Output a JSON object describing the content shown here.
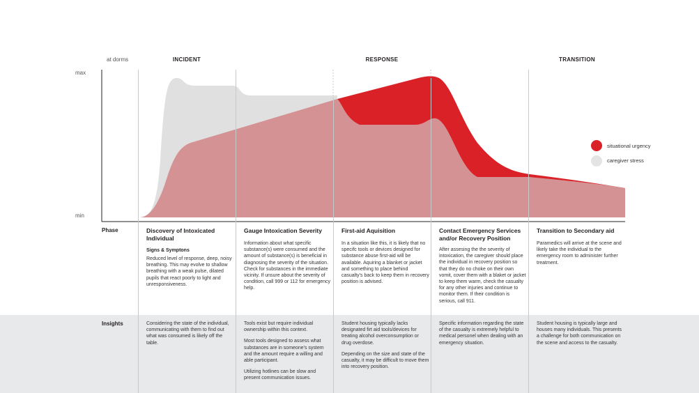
{
  "axis": {
    "top_label": "max",
    "bottom_label": "min",
    "first_column_label": "at dorms"
  },
  "phases": [
    {
      "key": "incident",
      "label": "INCIDENT"
    },
    {
      "key": "response",
      "label": "RESPONSE"
    },
    {
      "key": "transition",
      "label": "TRANSITION"
    }
  ],
  "legend": [
    {
      "label": "situational urgency",
      "color": "#da2128"
    },
    {
      "label": "caregiver stress",
      "color": "#e4e4e4"
    }
  ],
  "colors": {
    "urgency": "#da2128",
    "stress": "#e0e0e0",
    "overlap": "#d49294",
    "grid": "#c9c9c9",
    "band": "#e8e9ea"
  },
  "table": {
    "phase_row_label": "Phase",
    "insights_row_label": "Insights",
    "columns": [
      {
        "title": "Discovery of Intoxicated Individual",
        "subtitle": "Signs & Symptons",
        "body": [
          "Reduced level of response, deep, noisy breathing. This may evolve to shallow breathing with a weak pulse, dilated pupils that react poorly to light and unresponsiveness."
        ],
        "insights": [
          "Considering the state of the individual, communicating with them to find out what was consumed is likely off the table."
        ]
      },
      {
        "title": "Gauge Intoxication Severity",
        "subtitle": "",
        "body": [
          "Information about what specific substance(s) were consumed and the amount of substance(s) is beneficial in diagnosing the severity of the situation. Check for substances in the immediate vicinity. If unsure about the severity of condition, call 999 or 112 for emergency help."
        ],
        "insights": [
          "Tools exist but require individual ownership within this context.",
          "Most tools designed to assess what substances are in someone's system and the amount require a willing and able participant.",
          "Utilizing hotlines can be slow and present communication issues."
        ]
      },
      {
        "title": "First-aid Aquisition",
        "subtitle": "",
        "body": [
          "In a situation like this, it is likely that no specifc tools or devices designed for substance abuse first-aid will be available. Aquiring a blanket or jacket and something to place behind casualty's back to keep them in recovery position is advised."
        ],
        "insights": [
          "Student housing typically lacks designated firt aid tools/devices for treating alcohol overconsumption or drug overdose.",
          "Depending on the size and state of the casualty, it may be difficult to move them into recovery position."
        ]
      },
      {
        "title": "Contact Emergency Services and/or Recovery Position",
        "subtitle": "",
        "body": [
          "After assesing the the severity of intoxication, the caregiver should place the individual in recovery position so that they do no choke on their own vomit, cover them with a blaket or jacket to keep them warm, check the casualty for any other injuries and continue to monitor them. If their condition is serious, call 911."
        ],
        "insights": [
          "Specific information regarding the state of the casualty is extremely helpful to medical personel when dealing with an emergency situation."
        ]
      },
      {
        "title": "Transition to Secondary aid",
        "subtitle": "",
        "body": [
          "Paramedics will arrive at the scene and likely take the individual to the emergency room to administer further treatment."
        ],
        "insights": [
          "Student housing is typically large and houses many individuals. This presents a challenge for both communication on the scene and access to the casualty."
        ]
      }
    ]
  }
}
